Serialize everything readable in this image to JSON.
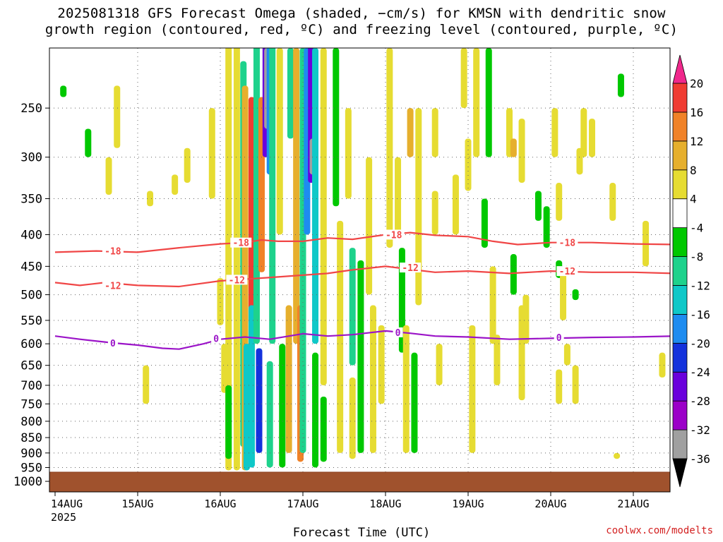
{
  "chart_data": {
    "type": "heatmap",
    "title_lines": [
      "2025081318 GFS Forecast Omega (shaded, −cm/s) for KMSN with dendritic snow",
      "growth region (contoured, red, ºC) and freezing level (contoured, purple, ºC)"
    ],
    "xlabel": "Forecast Time (UTC)",
    "credit": "coolwx.com/modelts",
    "x_ticks": [
      "14AUG",
      "15AUG",
      "16AUG",
      "17AUG",
      "18AUG",
      "19AUG",
      "20AUG",
      "21AUG"
    ],
    "x_year": "2025",
    "y_ticks": [
      250,
      300,
      350,
      400,
      450,
      500,
      550,
      600,
      650,
      700,
      750,
      800,
      850,
      900,
      950,
      1000
    ],
    "y_unit": "hPa",
    "colorbar": {
      "levels": [
        -36,
        -32,
        -28,
        -24,
        -20,
        -16,
        -12,
        -8,
        -4,
        4,
        8,
        12,
        16,
        20
      ],
      "colors": [
        "#000000",
        "#a0a0a0",
        "#9b00c8",
        "#6a00dc",
        "#1432dc",
        "#1e8cf0",
        "#0fc8c8",
        "#1ed28c",
        "#00c800",
        "#ffffff",
        "#e6dc32",
        "#e6af2d",
        "#f08228",
        "#f03c32",
        "#f0288c"
      ]
    },
    "series": [
      {
        "name": "-18",
        "color": "#f04646",
        "points": [
          [
            0,
            427
          ],
          [
            0.5,
            425
          ],
          [
            1,
            427
          ],
          [
            1.5,
            420
          ],
          [
            2,
            414
          ],
          [
            2.3,
            412
          ],
          [
            2.5,
            408
          ],
          [
            2.7,
            410
          ],
          [
            3,
            410
          ],
          [
            3.3,
            405
          ],
          [
            3.6,
            407
          ],
          [
            4,
            400
          ],
          [
            4.3,
            397
          ],
          [
            4.6,
            401
          ],
          [
            5,
            403
          ],
          [
            5.3,
            410
          ],
          [
            5.6,
            415
          ],
          [
            6,
            412
          ],
          [
            6.5,
            412
          ],
          [
            7,
            414
          ],
          [
            7.5,
            415
          ]
        ]
      },
      {
        "name": "-12",
        "color": "#f04646",
        "points": [
          [
            0,
            478
          ],
          [
            0.3,
            483
          ],
          [
            0.6,
            478
          ],
          [
            1,
            483
          ],
          [
            1.5,
            485
          ],
          [
            2,
            475
          ],
          [
            2.3,
            472
          ],
          [
            2.5,
            470
          ],
          [
            2.7,
            468
          ],
          [
            3,
            465
          ],
          [
            3.3,
            462
          ],
          [
            3.6,
            456
          ],
          [
            4,
            450
          ],
          [
            4.3,
            455
          ],
          [
            4.6,
            460
          ],
          [
            5,
            458
          ],
          [
            5.5,
            462
          ],
          [
            6,
            458
          ],
          [
            6.5,
            460
          ],
          [
            7,
            460
          ],
          [
            7.5,
            462
          ]
        ]
      },
      {
        "name": "0",
        "color": "#9b14c8",
        "points": [
          [
            0,
            583
          ],
          [
            0.3,
            590
          ],
          [
            0.7,
            598
          ],
          [
            1,
            603
          ],
          [
            1.3,
            610
          ],
          [
            1.5,
            612
          ],
          [
            1.8,
            600
          ],
          [
            2,
            590
          ],
          [
            2.3,
            585
          ],
          [
            2.6,
            590
          ],
          [
            3,
            578
          ],
          [
            3.3,
            583
          ],
          [
            3.6,
            580
          ],
          [
            4,
            572
          ],
          [
            4.3,
            577
          ],
          [
            4.6,
            583
          ],
          [
            5,
            585
          ],
          [
            5.5,
            590
          ],
          [
            6,
            588
          ],
          [
            6.5,
            586
          ],
          [
            7,
            585
          ],
          [
            7.5,
            583
          ]
        ]
      }
    ],
    "contour_labels": [
      {
        "text": "-18",
        "x": 0.7,
        "y": 425
      },
      {
        "text": "-18",
        "x": 2.25,
        "y": 412
      },
      {
        "text": "-18",
        "x": 4.1,
        "y": 400
      },
      {
        "text": "-18",
        "x": 6.2,
        "y": 412
      },
      {
        "text": "-12",
        "x": 0.7,
        "y": 483
      },
      {
        "text": "-12",
        "x": 2.2,
        "y": 473
      },
      {
        "text": "-12",
        "x": 4.3,
        "y": 452
      },
      {
        "text": "-12",
        "x": 6.2,
        "y": 458
      },
      {
        "text": "0",
        "x": 0.7,
        "y": 598
      },
      {
        "text": "0",
        "x": 1.95,
        "y": 588
      },
      {
        "text": "0",
        "x": 4.15,
        "y": 575
      },
      {
        "text": "0",
        "x": 6.1,
        "y": 586
      }
    ],
    "omega_patches": [
      {
        "x": 0.1,
        "p1": 230,
        "p2": 240,
        "v": -6
      },
      {
        "x": 0.75,
        "p1": 230,
        "p2": 290,
        "v": 5
      },
      {
        "x": 0.65,
        "p1": 300,
        "p2": 345,
        "v": 5
      },
      {
        "x": 0.4,
        "p1": 270,
        "p2": 300,
        "v": -6
      },
      {
        "x": 1.15,
        "p1": 340,
        "p2": 360,
        "v": 5
      },
      {
        "x": 1.45,
        "p1": 320,
        "p2": 345,
        "v": 5
      },
      {
        "x": 1.1,
        "p1": 650,
        "p2": 750,
        "v": 5
      },
      {
        "x": 1.6,
        "p1": 290,
        "p2": 330,
        "v": 5
      },
      {
        "x": 1.9,
        "p1": 250,
        "p2": 350,
        "v": 5
      },
      {
        "x": 2.0,
        "p1": 470,
        "p2": 560,
        "v": 5
      },
      {
        "x": 2.05,
        "p1": 600,
        "p2": 720,
        "v": 5
      },
      {
        "x": 2.1,
        "p1": 180,
        "p2": 960,
        "v": 6
      },
      {
        "x": 2.1,
        "p1": 700,
        "p2": 920,
        "v": -8
      },
      {
        "x": 2.2,
        "p1": 190,
        "p2": 960,
        "v": 7
      },
      {
        "x": 2.28,
        "p1": 210,
        "p2": 880,
        "v": -10
      },
      {
        "x": 2.3,
        "p1": 230,
        "p2": 960,
        "v": 9
      },
      {
        "x": 2.32,
        "p1": 600,
        "p2": 960,
        "v": -13
      },
      {
        "x": 2.38,
        "p1": 240,
        "p2": 560,
        "v": 17
      },
      {
        "x": 2.38,
        "p1": 520,
        "p2": 950,
        "v": -16
      },
      {
        "x": 2.44,
        "p1": 190,
        "p2": 600,
        "v": -9
      },
      {
        "x": 2.47,
        "p1": 610,
        "p2": 900,
        "v": -22
      },
      {
        "x": 2.5,
        "p1": 240,
        "p2": 460,
        "v": 12
      },
      {
        "x": 2.55,
        "p1": 190,
        "p2": 300,
        "v": -26
      },
      {
        "x": 2.57,
        "p1": 200,
        "p2": 270,
        "v": -34
      },
      {
        "x": 2.6,
        "p1": 190,
        "p2": 320,
        "v": -20
      },
      {
        "x": 2.63,
        "p1": 190,
        "p2": 600,
        "v": -10
      },
      {
        "x": 2.6,
        "p1": 640,
        "p2": 950,
        "v": -12
      },
      {
        "x": 2.72,
        "p1": 200,
        "p2": 400,
        "v": 6
      },
      {
        "x": 2.75,
        "p1": 600,
        "p2": 950,
        "v": -8
      },
      {
        "x": 2.83,
        "p1": 520,
        "p2": 900,
        "v": 10
      },
      {
        "x": 2.85,
        "p1": 200,
        "p2": 280,
        "v": -9
      },
      {
        "x": 2.92,
        "p1": 200,
        "p2": 600,
        "v": 8
      },
      {
        "x": 2.97,
        "p1": 520,
        "p2": 930,
        "v": 14
      },
      {
        "x": 3.0,
        "p1": 200,
        "p2": 900,
        "v": -12
      },
      {
        "x": 3.05,
        "p1": 200,
        "p2": 400,
        "v": -18
      },
      {
        "x": 3.1,
        "p1": 190,
        "p2": 330,
        "v": -26
      },
      {
        "x": 3.12,
        "p1": 280,
        "p2": 320,
        "v": -34
      },
      {
        "x": 3.15,
        "p1": 200,
        "p2": 600,
        "v": -14
      },
      {
        "x": 3.15,
        "p1": 620,
        "p2": 950,
        "v": -7
      },
      {
        "x": 3.25,
        "p1": 200,
        "p2": 700,
        "v": 6
      },
      {
        "x": 3.25,
        "p1": 730,
        "p2": 930,
        "v": -7
      },
      {
        "x": 3.4,
        "p1": 200,
        "p2": 360,
        "v": -7
      },
      {
        "x": 3.45,
        "p1": 380,
        "p2": 900,
        "v": 6
      },
      {
        "x": 3.55,
        "p1": 250,
        "p2": 350,
        "v": 5
      },
      {
        "x": 3.6,
        "p1": 420,
        "p2": 650,
        "v": -10
      },
      {
        "x": 3.6,
        "p1": 680,
        "p2": 920,
        "v": 6
      },
      {
        "x": 3.7,
        "p1": 440,
        "p2": 900,
        "v": -8
      },
      {
        "x": 3.8,
        "p1": 300,
        "p2": 500,
        "v": 5
      },
      {
        "x": 3.85,
        "p1": 520,
        "p2": 900,
        "v": 6
      },
      {
        "x": 3.95,
        "p1": 560,
        "p2": 750,
        "v": 5
      },
      {
        "x": 4.05,
        "p1": 200,
        "p2": 420,
        "v": 6
      },
      {
        "x": 4.15,
        "p1": 300,
        "p2": 400,
        "v": 5
      },
      {
        "x": 4.2,
        "p1": 420,
        "p2": 620,
        "v": -7
      },
      {
        "x": 4.25,
        "p1": 560,
        "p2": 900,
        "v": 5
      },
      {
        "x": 4.3,
        "p1": 250,
        "p2": 300,
        "v": 11
      },
      {
        "x": 4.4,
        "p1": 250,
        "p2": 520,
        "v": 6
      },
      {
        "x": 4.35,
        "p1": 620,
        "p2": 900,
        "v": -8
      },
      {
        "x": 4.6,
        "p1": 250,
        "p2": 300,
        "v": 5
      },
      {
        "x": 4.6,
        "p1": 340,
        "p2": 400,
        "v": 5
      },
      {
        "x": 4.65,
        "p1": 600,
        "p2": 700,
        "v": 5
      },
      {
        "x": 4.95,
        "p1": 200,
        "p2": 250,
        "v": 5
      },
      {
        "x": 5.0,
        "p1": 280,
        "p2": 340,
        "v": 5
      },
      {
        "x": 4.85,
        "p1": 320,
        "p2": 400,
        "v": 5
      },
      {
        "x": 5.05,
        "p1": 560,
        "p2": 900,
        "v": 5
      },
      {
        "x": 5.1,
        "p1": 200,
        "p2": 300,
        "v": 6
      },
      {
        "x": 5.25,
        "p1": 200,
        "p2": 300,
        "v": -7
      },
      {
        "x": 5.2,
        "p1": 350,
        "p2": 420,
        "v": -8
      },
      {
        "x": 5.3,
        "p1": 450,
        "p2": 600,
        "v": 5
      },
      {
        "x": 5.35,
        "p1": 580,
        "p2": 700,
        "v": 5
      },
      {
        "x": 5.5,
        "p1": 250,
        "p2": 300,
        "v": 5
      },
      {
        "x": 5.55,
        "p1": 280,
        "p2": 300,
        "v": 11
      },
      {
        "x": 5.65,
        "p1": 260,
        "p2": 330,
        "v": 6
      },
      {
        "x": 5.55,
        "p1": 430,
        "p2": 500,
        "v": -8
      },
      {
        "x": 5.65,
        "p1": 520,
        "p2": 740,
        "v": 5
      },
      {
        "x": 5.7,
        "p1": 500,
        "p2": 600,
        "v": 5
      },
      {
        "x": 5.85,
        "p1": 340,
        "p2": 380,
        "v": -8
      },
      {
        "x": 5.95,
        "p1": 360,
        "p2": 420,
        "v": -7
      },
      {
        "x": 6.05,
        "p1": 250,
        "p2": 300,
        "v": 5
      },
      {
        "x": 6.1,
        "p1": 330,
        "p2": 380,
        "v": 6
      },
      {
        "x": 6.1,
        "p1": 440,
        "p2": 470,
        "v": -7
      },
      {
        "x": 6.1,
        "p1": 660,
        "p2": 750,
        "v": 5
      },
      {
        "x": 6.15,
        "p1": 450,
        "p2": 550,
        "v": 5
      },
      {
        "x": 6.2,
        "p1": 600,
        "p2": 650,
        "v": 5
      },
      {
        "x": 6.3,
        "p1": 490,
        "p2": 510,
        "v": -8
      },
      {
        "x": 6.3,
        "p1": 650,
        "p2": 750,
        "v": 5
      },
      {
        "x": 6.35,
        "p1": 290,
        "p2": 320,
        "v": 5
      },
      {
        "x": 6.4,
        "p1": 250,
        "p2": 300,
        "v": 5
      },
      {
        "x": 6.5,
        "p1": 260,
        "p2": 300,
        "v": 5
      },
      {
        "x": 6.75,
        "p1": 330,
        "p2": 380,
        "v": 5
      },
      {
        "x": 6.8,
        "p1": 900,
        "p2": 920,
        "v": 5
      },
      {
        "x": 7.15,
        "p1": 380,
        "p2": 450,
        "v": 5
      },
      {
        "x": 7.35,
        "p1": 620,
        "p2": 680,
        "v": 5
      },
      {
        "x": 7.5,
        "p1": 880,
        "p2": 930,
        "v": -8
      },
      {
        "x": 6.85,
        "p1": 220,
        "p2": 240,
        "v": -7
      },
      {
        "x": 7.7,
        "p1": 900,
        "p2": 920,
        "v": -7
      },
      {
        "x": 7.65,
        "p1": 640,
        "p2": 660,
        "v": 5
      }
    ]
  }
}
